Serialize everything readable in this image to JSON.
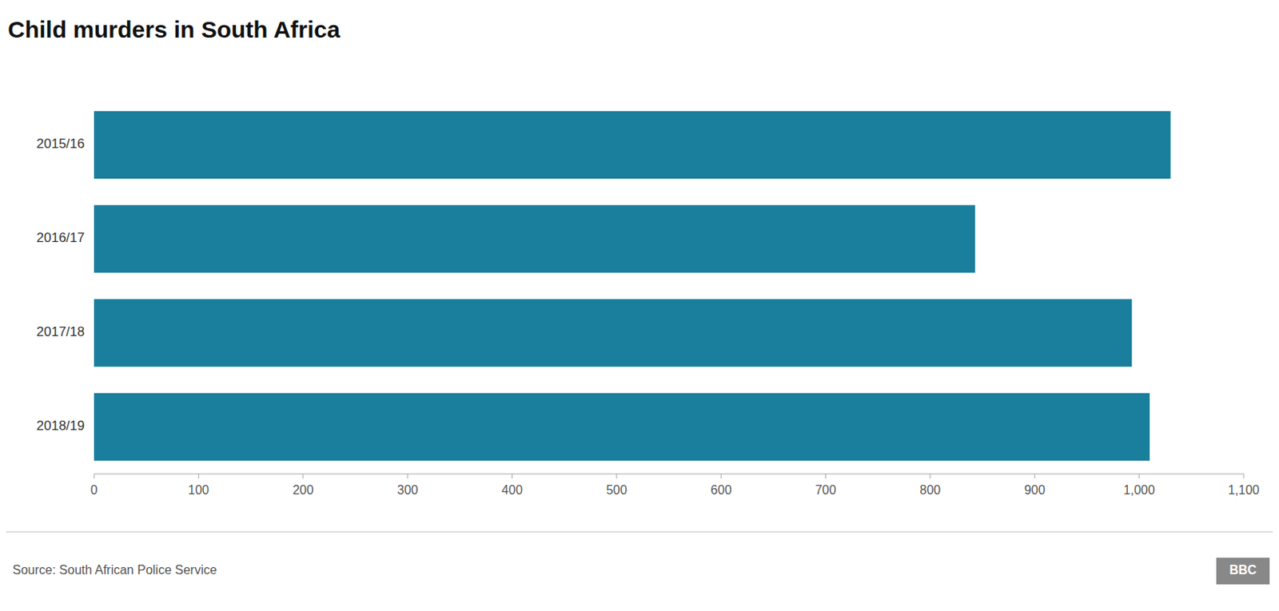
{
  "chart_data": {
    "type": "bar",
    "orientation": "horizontal",
    "title": "Child murders in South Africa",
    "categories": [
      "2015/16",
      "2016/17",
      "2017/18",
      "2018/19"
    ],
    "values": [
      1030,
      843,
      993,
      1010
    ],
    "color": "#1a7f9c",
    "xlim": [
      0,
      1100
    ],
    "xticks": [
      0,
      100,
      200,
      300,
      400,
      500,
      600,
      700,
      800,
      900,
      {
        "value": 1000,
        "label": "1,000"
      },
      {
        "value": 1100,
        "label": "1,100"
      }
    ],
    "grid": false,
    "annotations": [
      "Source: South African Police Service",
      "BBC"
    ]
  }
}
